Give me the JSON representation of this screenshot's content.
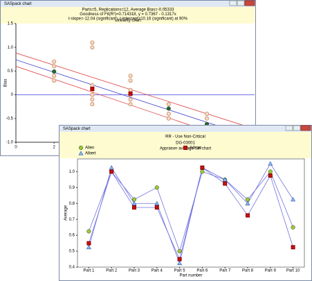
{
  "chart_data": [
    {
      "type": "scatter",
      "window_title": "SASpack chart",
      "subtitle_lines": [
        "Parts=5, Replications=12, Average Bias=-0.05333",
        "Goodness of Fit(R²)=0.714318,  y = 0.7367 - 0.1317x",
        "t-slope=-12.04 (significant), t-intercept=10.16 (significant) at 90%"
      ],
      "title": "Linearity chart",
      "y_label": "Bias",
      "xlim": [
        0,
        12.5
      ],
      "xticks": [
        0,
        2
      ],
      "ylim": [
        -1,
        1.5
      ],
      "yticks": [
        {
          "value": -1,
          "label": "-1.0"
        },
        {
          "value": -0.5,
          "label": "-0.5"
        },
        0,
        {
          "value": 0.5,
          "label": "0.5"
        },
        {
          "value": 1,
          "label": "1.0"
        },
        {
          "value": 1.5,
          "label": "1.5"
        }
      ],
      "zero_line_color": "#6a6ae0",
      "series": [
        {
          "marker": "circle-open",
          "color": "#c8845a",
          "x": [
            2,
            2,
            2,
            2,
            4,
            4,
            4,
            4,
            4,
            4,
            4,
            6,
            6,
            6,
            6,
            6,
            6,
            8,
            8,
            8,
            10,
            10
          ],
          "values": [
            0.7,
            0.6,
            0.4,
            0.3,
            1.1,
            1.0,
            0.2,
            0.1,
            0.0,
            -0.1,
            -0.2,
            0.4,
            0.3,
            0.1,
            0.0,
            -0.1,
            -0.2,
            -0.2,
            -0.4,
            -0.5,
            -0.4,
            -0.5
          ]
        },
        {
          "marker": "mixed",
          "x": [
            2,
            4,
            6,
            8,
            10
          ],
          "values": [
            0.49,
            0.125,
            0.025,
            -0.29,
            -0.62
          ],
          "colors": [
            "#1f6b2e",
            "#cc0000",
            "#cc0000",
            "#1f6b2e",
            "#1f6b2e"
          ],
          "markers": [
            "circle",
            "square",
            "square",
            "circle",
            "circle"
          ]
        },
        {
          "marker": "line",
          "color": "#4040d0",
          "x": [
            0,
            12.5
          ],
          "values": [
            0.7367,
            -0.9096
          ]
        },
        {
          "marker": "line",
          "color": "#e04040",
          "x": [
            0,
            12.5
          ],
          "values": [
            0.88,
            -0.72
          ]
        },
        {
          "marker": "line",
          "color": "#e04040",
          "x": [
            0,
            12.5
          ],
          "values": [
            0.6,
            -1.1
          ]
        }
      ]
    },
    {
      "type": "line",
      "window_title": "SASpack chart",
      "title": "RR - Use Non-Critical",
      "subtitle": "DG-03001",
      "chart_title": "Appraiser average run chart",
      "x_label": "Part number",
      "y_label": "Average",
      "categories": [
        "Part 1",
        "Part 2",
        "Part 3",
        "Part 4",
        "Part 5",
        "Part 6",
        "Part 7",
        "Part 8",
        "Part 9",
        "Part 10"
      ],
      "ylim": [
        0.4,
        1.08
      ],
      "yticks": [
        0.4,
        0.5,
        0.6,
        0.7,
        0.8,
        0.9,
        {
          "value": 1,
          "label": "1.0"
        }
      ],
      "series": [
        {
          "name": "Allen",
          "marker": "circle",
          "color": "#9acd32",
          "line_color": "#7070e0",
          "values": [
            0.625,
            1.0,
            0.825,
            0.9,
            0.5,
            1.0,
            0.95,
            0.825,
            1.0,
            0.65
          ]
        },
        {
          "name": "Albert",
          "marker": "triangle",
          "color": "#8fb4e8",
          "line_color": "#7070e0",
          "values": [
            0.525,
            1.025,
            0.8,
            0.8,
            0.425,
            1.025,
            0.95,
            0.8,
            1.05,
            0.825
          ]
        },
        {
          "name": "Adrian",
          "marker": "square",
          "color": "#cc1111",
          "line_color": "#7070e0",
          "values": [
            0.55,
            1.0,
            0.775,
            0.775,
            0.45,
            1.025,
            0.925,
            0.725,
            0.975,
            0.525
          ]
        }
      ]
    }
  ]
}
